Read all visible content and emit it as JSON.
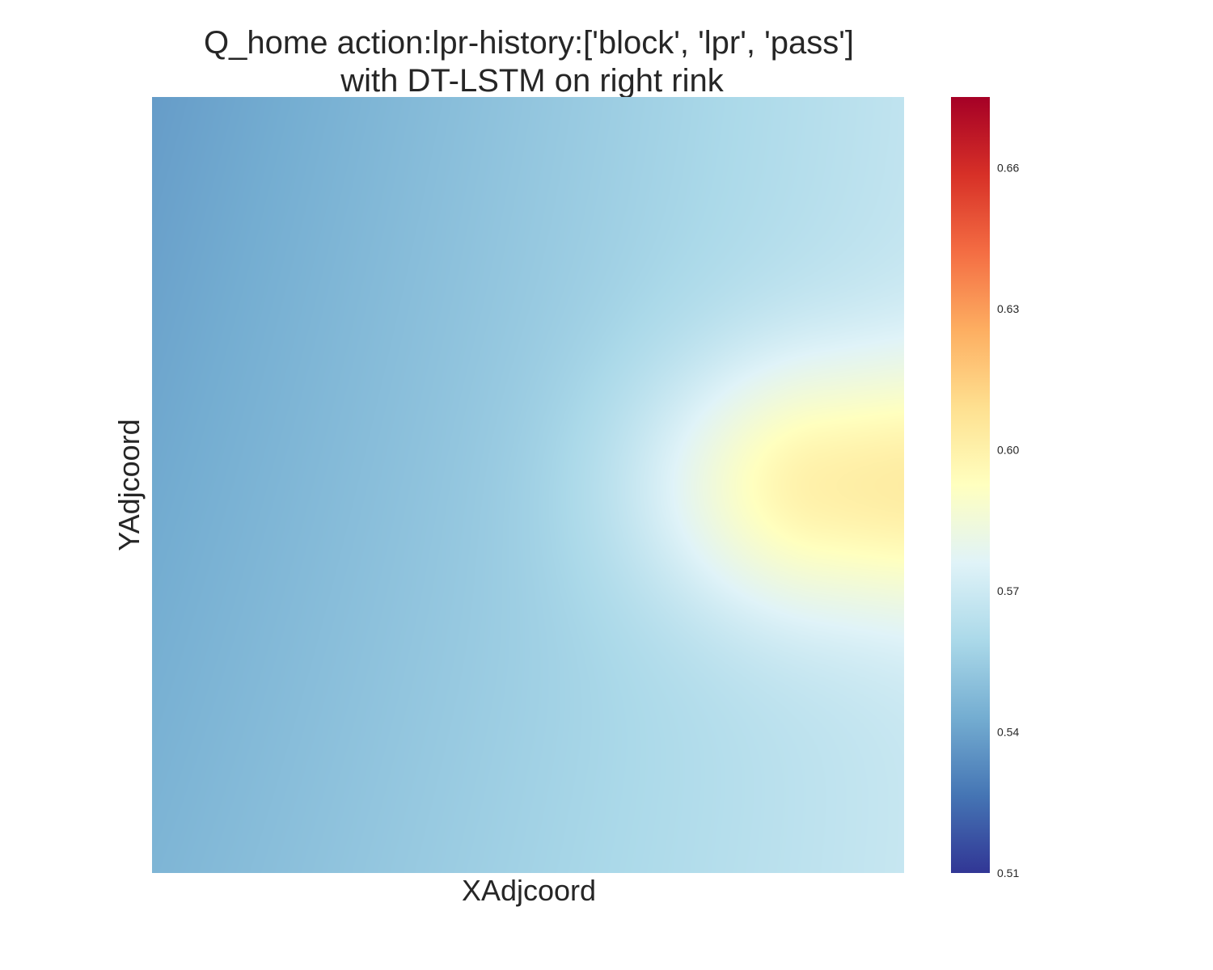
{
  "chart_data": {
    "type": "heatmap",
    "title_lines": [
      "Q_home action:lpr-history:['block', 'lpr', 'pass']",
      "with DT-LSTM on right rink"
    ],
    "xlabel": "XAdjcoord",
    "ylabel": "YAdjcoord",
    "grid": false,
    "colormap": "RdYlBu_r",
    "colorbar": {
      "range": [
        0.51,
        0.675
      ],
      "ticks": [
        0.51,
        0.54,
        0.57,
        0.6,
        0.63,
        0.66
      ],
      "tick_labels": [
        "0.51",
        "0.54",
        "0.57",
        "0.60",
        "0.63",
        "0.66"
      ]
    },
    "x_range": [
      0,
      1
    ],
    "y_range": [
      0,
      1
    ],
    "value_model": {
      "description": "value rises toward a peak near the right edge at vertical center",
      "peak": {
        "x": 0.89,
        "y": 0.5
      },
      "corner_values": {
        "top_left": 0.538,
        "bottom_left": 0.546,
        "top_right": 0.566,
        "bottom_right": 0.568
      },
      "peak_value": 0.598,
      "right_edge_center_value": 0.596
    }
  }
}
